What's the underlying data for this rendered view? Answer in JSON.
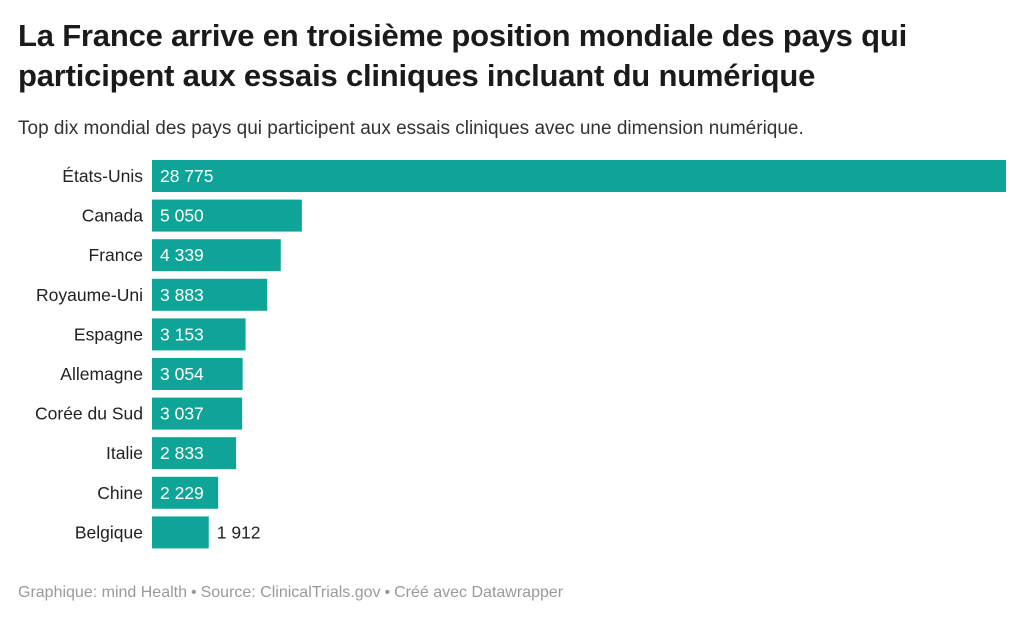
{
  "title": "La France arrive en troisième position mondiale des pays qui participent aux essais cliniques incluant du numérique",
  "subtitle": "Top dix mondial des pays qui participent aux essais cliniques avec une dimension numérique.",
  "footer": {
    "credit": "Graphique: mind Health",
    "source": "Source: ClinicalTrials.gov",
    "made_with": "Créé avec Datawrapper"
  },
  "chart_data": {
    "type": "bar",
    "orientation": "horizontal",
    "categories": [
      "États-Unis",
      "Canada",
      "France",
      "Royaume-Uni",
      "Espagne",
      "Allemagne",
      "Corée du Sud",
      "Italie",
      "Chine",
      "Belgique"
    ],
    "values": [
      28775,
      5050,
      4339,
      3883,
      3153,
      3054,
      3037,
      2833,
      2229,
      1912
    ],
    "value_labels": [
      "28 775",
      "5 050",
      "4 339",
      "3 883",
      "3 153",
      "3 054",
      "3 037",
      "2 833",
      "2 229",
      "1 912"
    ],
    "xlim": [
      0,
      28775
    ],
    "bar_color": "#0fa498",
    "grid": false,
    "legend": "none"
  }
}
